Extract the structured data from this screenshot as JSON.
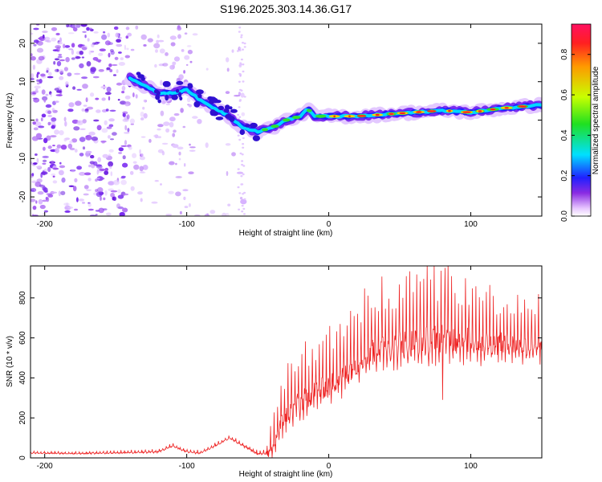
{
  "title": "S196.2025.303.14.36.G17",
  "colors": {
    "snr_line": "#ee2222",
    "spectrogram_scatter": "#7a2cf0",
    "axes": "#000000"
  },
  "colorbar": {
    "label": "Normalized spectral amplitude",
    "range": [
      0.0,
      0.95
    ],
    "ticks": [
      0.0,
      0.2,
      0.4,
      0.6,
      0.8
    ],
    "tick_labels": [
      "0.0",
      "0.2",
      "0.4",
      "0.6",
      "0.8"
    ]
  },
  "chart_data": [
    {
      "type": "heatmap",
      "name": "spectrogram",
      "title": "S196.2025.303.14.36.G17",
      "xlabel": "Height of straight line (km)",
      "ylabel": "Frequency (Hz)",
      "xlim": [
        -210,
        150
      ],
      "ylim": [
        -25,
        25
      ],
      "xticks": [
        -200,
        -100,
        0,
        100
      ],
      "xtick_labels": [
        "-200",
        "-100",
        "0",
        "100"
      ],
      "yticks": [
        -20,
        -10,
        0,
        10,
        20
      ],
      "ytick_labels": [
        "-20",
        "-10",
        "0",
        "10",
        "20"
      ],
      "ridge": {
        "x": [
          -140,
          -130,
          -120,
          -110,
          -100,
          -90,
          -80,
          -70,
          -60,
          -50,
          -40,
          -30,
          -20,
          -15,
          -10,
          0,
          20,
          40,
          60,
          80,
          100,
          120,
          150
        ],
        "y": [
          11,
          9,
          7,
          7,
          8,
          5,
          3,
          1,
          -2,
          -3,
          -2,
          0,
          1,
          3,
          1,
          1,
          1,
          1.5,
          2,
          2.5,
          2,
          3,
          4
        ]
      },
      "noise_region_x": [
        -210,
        -60
      ]
    },
    {
      "type": "line",
      "name": "snr",
      "xlabel": "Height of straight line (km)",
      "ylabel": "SNR (10 * v/v)",
      "xlim": [
        -210,
        150
      ],
      "ylim": [
        0,
        960
      ],
      "xticks": [
        -200,
        -100,
        0,
        100
      ],
      "xtick_labels": [
        "-200",
        "-100",
        "0",
        "100"
      ],
      "yticks": [
        0,
        200,
        400,
        600,
        800
      ],
      "ytick_labels": [
        "0",
        "200",
        "400",
        "600",
        "800"
      ],
      "baseline": {
        "x": [
          -210,
          -180,
          -150,
          -120,
          -110,
          -100,
          -90,
          -80,
          -70,
          -60,
          -50,
          -40,
          -35,
          -30,
          -20,
          -10,
          0,
          10,
          20,
          30,
          40,
          60,
          80,
          100,
          120,
          150
        ],
        "y": [
          25,
          22,
          25,
          30,
          60,
          30,
          25,
          60,
          100,
          60,
          20,
          25,
          150,
          220,
          280,
          330,
          360,
          420,
          480,
          540,
          560,
          580,
          600,
          590,
          570,
          560
        ]
      },
      "spike_amplitude": {
        "x": [
          -210,
          -45,
          -40,
          -30,
          -20,
          0,
          20,
          40,
          80,
          100,
          150
        ],
        "y": [
          8,
          15,
          150,
          200,
          220,
          230,
          270,
          280,
          300,
          260,
          200
        ]
      },
      "notable_peaks": [
        {
          "x": 82,
          "y": 950
        },
        {
          "x": 80,
          "y": 290
        }
      ]
    }
  ]
}
